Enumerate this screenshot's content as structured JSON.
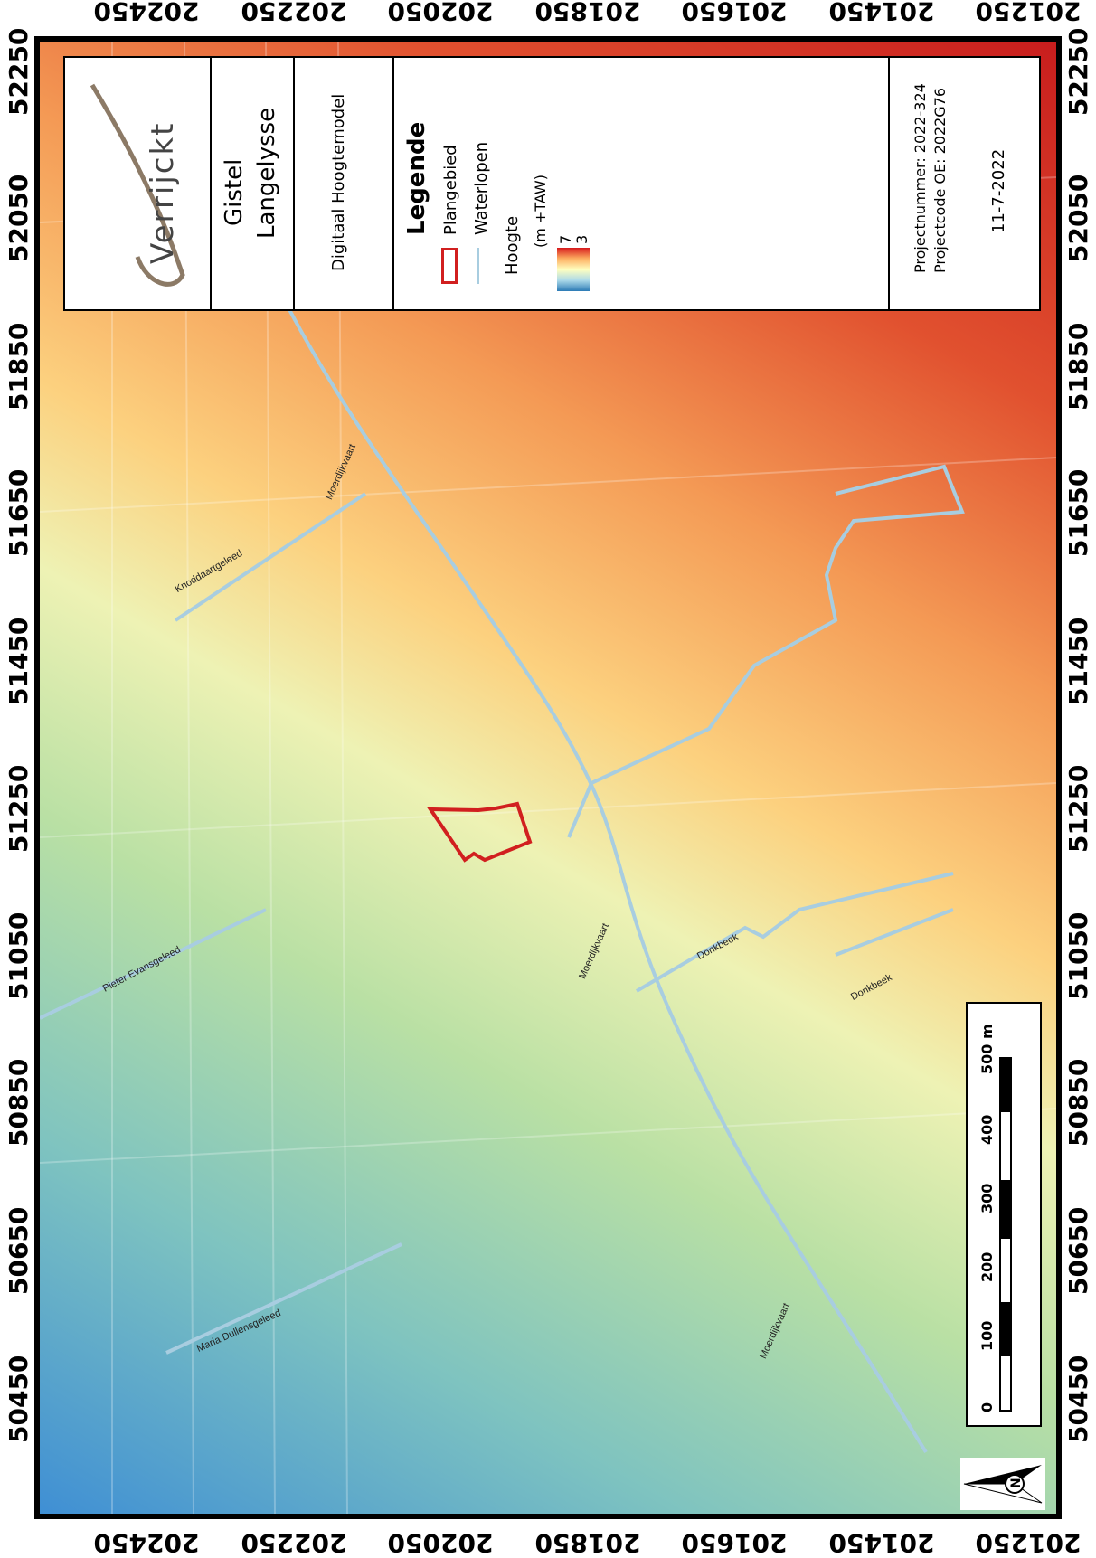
{
  "axes": {
    "top_ticks": [
      "202450",
      "202250",
      "202050",
      "201850",
      "201650",
      "201450",
      "201250"
    ],
    "bottom_ticks": [
      "202450",
      "202250",
      "202050",
      "201850",
      "201650",
      "201450",
      "201250"
    ],
    "side_ticks": [
      "52250",
      "52050",
      "51850",
      "51650",
      "51450",
      "51250",
      "51050",
      "50850",
      "50650",
      "50450"
    ]
  },
  "panel": {
    "logo_text": "Verrijckt",
    "location_line1": "Gistel",
    "location_line2": "Langelysse",
    "map_title": "Digitaal Hoogtemodel",
    "legend_title": "Legende",
    "legend_plangebied": "Plangebied",
    "legend_waterlopen": "Waterlopen",
    "legend_hoogte": "Hoogte",
    "legend_unit": "(m +TAW)",
    "legend_high": "7",
    "legend_low": "3",
    "project_number": "Projectnummer:  2022-324",
    "project_code": "Projectcode OE:  2022G76",
    "date": "11-7-2022"
  },
  "streets": {
    "moerdijkvaart_1": "Moerdijkvaart",
    "moerdijkvaart_2": "Moerdijkvaart",
    "moerdijkvaart_3": "Moerdijkvaart",
    "knoddaartgeleed": "Knoddaartgeleed",
    "pieter_evansgeleed": "Pieter Evansgeleed",
    "maria_dullensgeleed": "Maria Dullensgeleed",
    "donkbeek_1": "Donkbeek",
    "donkbeek_2": "Donkbeek"
  },
  "scalebar": {
    "labels": [
      "0",
      "100",
      "200",
      "300",
      "400",
      "500 m"
    ]
  },
  "colors": {
    "plangebied": "#d11f1f",
    "waterlopen": "#a8cde0",
    "high": "#d7191c",
    "low": "#2c7bb6"
  }
}
